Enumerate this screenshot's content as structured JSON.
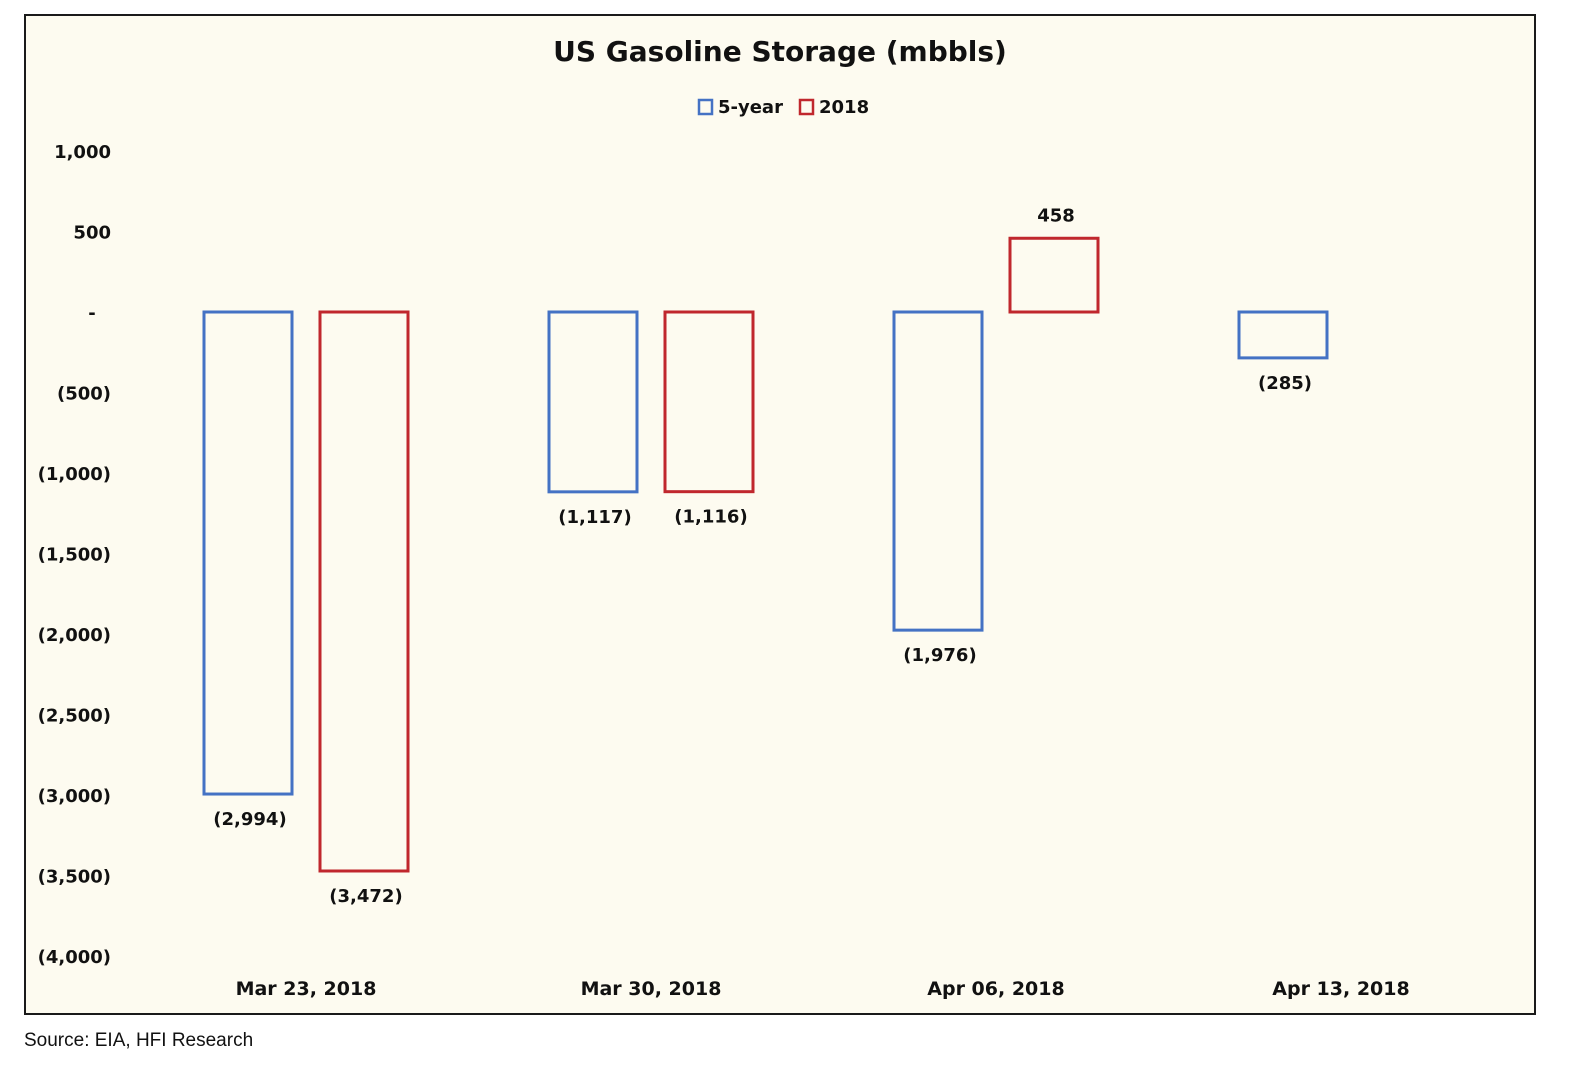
{
  "chart_data": {
    "type": "bar",
    "title": "US Gasoline Storage (mbbls)",
    "xlabel": "",
    "ylabel": "",
    "categories": [
      "Mar 23, 2018",
      "Mar 30, 2018",
      "Apr 06, 2018",
      "Apr 13, 2018"
    ],
    "series": [
      {
        "name": "5-year",
        "color": "#4472c4",
        "values": [
          -2994,
          -1117,
          -1976,
          -285
        ],
        "labels": [
          "(2,994)",
          "(1,117)",
          "(1,976)",
          "(285)"
        ]
      },
      {
        "name": "2018",
        "color": "#c0272d",
        "values": [
          -3472,
          -1116,
          458,
          null
        ],
        "labels": [
          "(3,472)",
          "(1,116)",
          "458",
          ""
        ]
      }
    ],
    "ylim": [
      -4000,
      1000
    ],
    "yticks": [
      {
        "value": 1000,
        "label": "1,000"
      },
      {
        "value": 500,
        "label": "500"
      },
      {
        "value": 0,
        "label": "-"
      },
      {
        "value": -500,
        "label": "(500)"
      },
      {
        "value": -1000,
        "label": "(1,000)"
      },
      {
        "value": -1500,
        "label": "(1,500)"
      },
      {
        "value": -2000,
        "label": "(2,000)"
      },
      {
        "value": -2500,
        "label": "(2,500)"
      },
      {
        "value": -3000,
        "label": "(3,000)"
      },
      {
        "value": -3500,
        "label": "(3,500)"
      },
      {
        "value": -4000,
        "label": "(4,000)"
      }
    ],
    "grid": false,
    "legend": "top-center",
    "bar_style": "outline",
    "background": "#fdfbf0"
  },
  "source": "Source: EIA, HFI Research"
}
